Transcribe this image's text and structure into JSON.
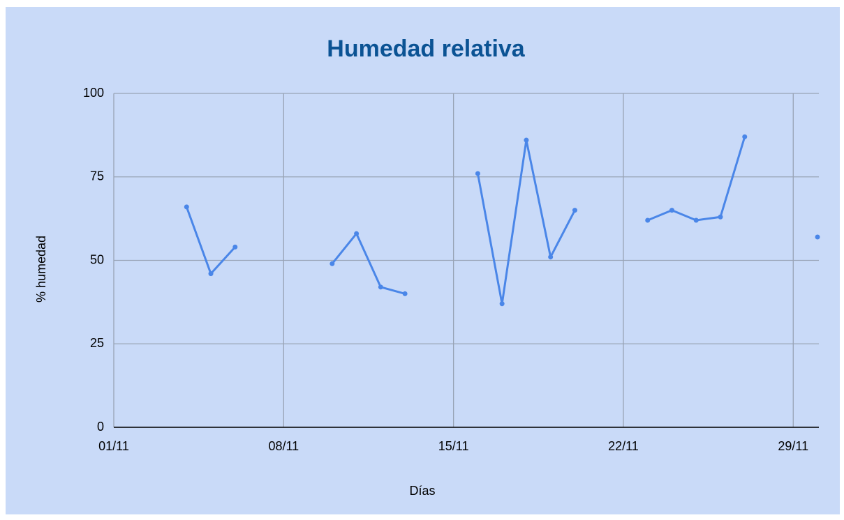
{
  "chart_data": {
    "type": "line",
    "title": "Humedad relativa",
    "x_label": "Días",
    "y_label": "% humedad",
    "categories": [
      "01/11",
      null,
      null,
      null,
      null,
      null,
      null,
      "08/11",
      null,
      null,
      null,
      null,
      null,
      null,
      "15/11",
      null,
      null,
      null,
      null,
      null,
      null,
      "22/11",
      null,
      null,
      null,
      null,
      null,
      null,
      "29/11",
      null
    ],
    "series": [
      {
        "name": "Humedad",
        "color": "#4a86e8",
        "values": [
          null,
          null,
          null,
          66,
          46,
          54,
          null,
          null,
          null,
          49,
          58,
          42,
          40,
          null,
          null,
          76,
          37,
          86,
          51,
          65,
          null,
          null,
          62,
          65,
          62,
          63,
          87,
          null,
          null,
          57
        ]
      }
    ],
    "ylim": [
      0,
      100
    ],
    "yticks": [
      0,
      25,
      50,
      75,
      100
    ],
    "grid": true
  }
}
